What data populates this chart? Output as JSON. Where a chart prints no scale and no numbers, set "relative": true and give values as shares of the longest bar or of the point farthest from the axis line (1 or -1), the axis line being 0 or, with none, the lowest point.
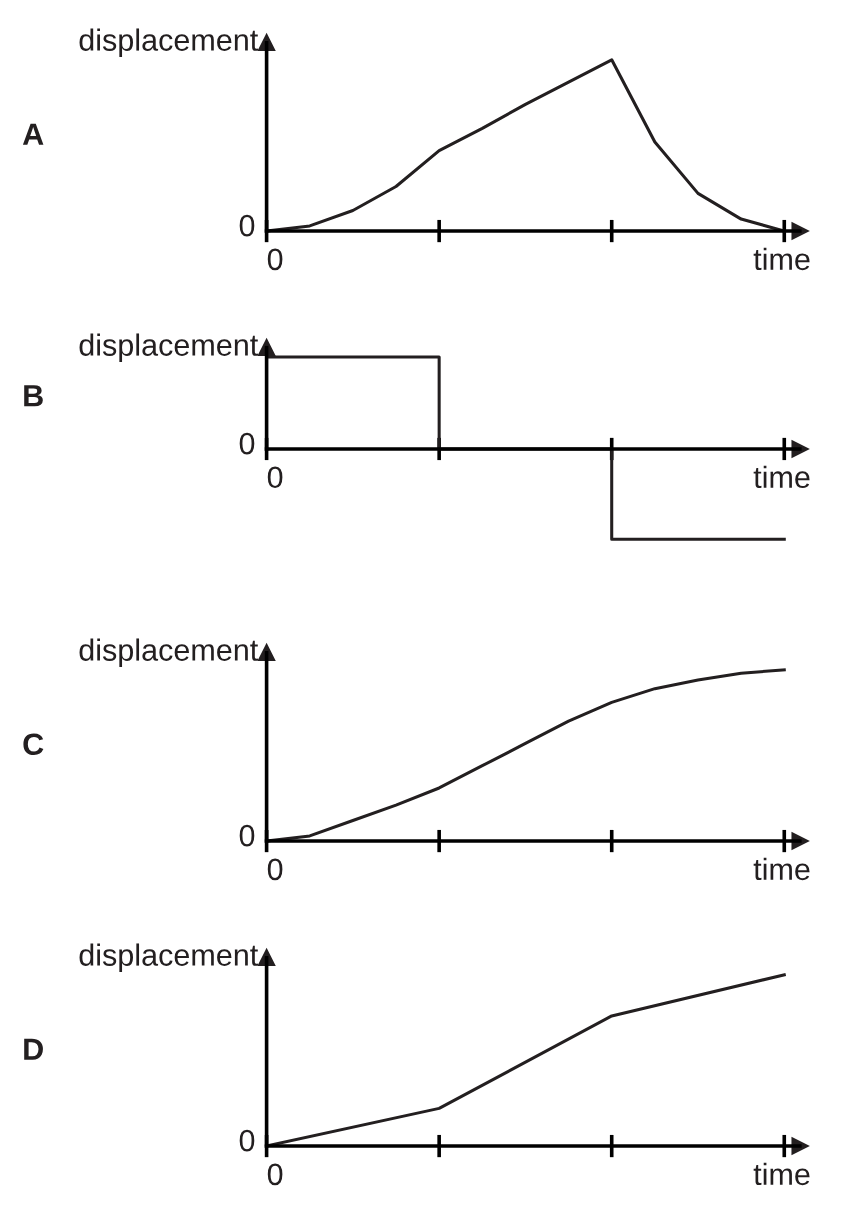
{
  "chart_data": [
    {
      "type": "line",
      "ylabel": "displacement",
      "xlabel": "time",
      "relative": true,
      "color": "#231f20",
      "annotations": [
        "0",
        "0",
        "A"
      ],
      "categories": [
        null,
        null,
        null,
        null,
        null,
        null,
        null,
        null,
        null,
        null,
        null,
        null,
        null
      ],
      "values": [
        0,
        0.03,
        0.12,
        0.26,
        0.47,
        0.6,
        0.74,
        0.87,
        1,
        0.52,
        0.22,
        0.07,
        0
      ]
    },
    {
      "type": "step",
      "ylabel": "displacement",
      "xlabel": "time",
      "relative": true,
      "color": "#231f20",
      "annotations": [
        "0",
        "0",
        "B"
      ],
      "categories": [
        null,
        null,
        null,
        null
      ],
      "values": [
        1,
        0,
        -0.98,
        -0.98
      ]
    },
    {
      "type": "line",
      "ylabel": "displacement",
      "xlabel": "time",
      "relative": true,
      "color": "#231f20",
      "annotations": [
        "0",
        "0",
        "C"
      ],
      "categories": [
        null,
        null,
        null,
        null,
        null,
        null,
        null,
        null,
        null,
        null,
        null,
        null,
        null
      ],
      "values": [
        0,
        0.03,
        0.12,
        0.21,
        0.31,
        0.44,
        0.57,
        0.7,
        0.81,
        0.89,
        0.94,
        0.98,
        1
      ]
    },
    {
      "type": "line",
      "ylabel": "displacement",
      "xlabel": "time",
      "relative": true,
      "color": "#231f20",
      "annotations": [
        "0",
        "0",
        "D"
      ],
      "categories": [
        null,
        null,
        null,
        null
      ],
      "values": [
        0,
        0.22,
        0.76,
        1
      ]
    }
  ]
}
